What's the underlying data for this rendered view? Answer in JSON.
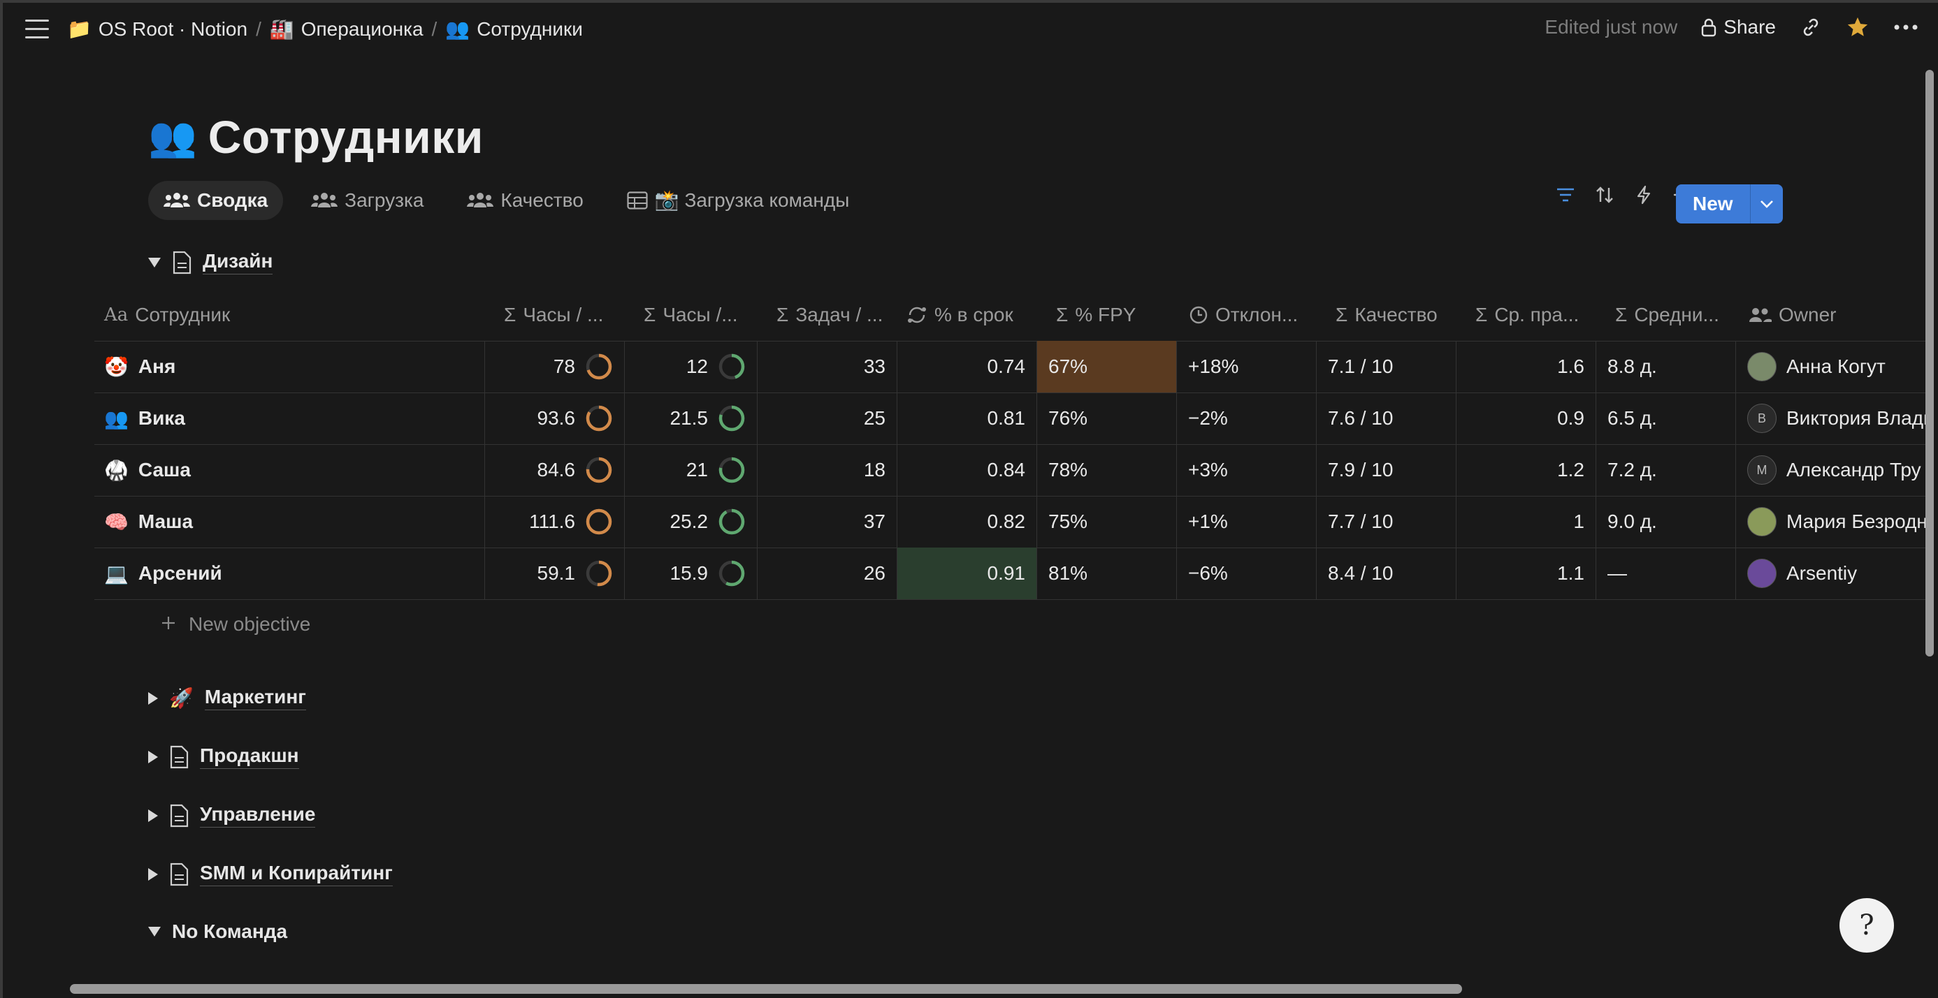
{
  "breadcrumbs": [
    {
      "icon": "📁",
      "label": "OS Root · Notion"
    },
    {
      "icon": "🏭",
      "label": "Операционка"
    },
    {
      "icon": "👥",
      "label": "Сотрудники"
    }
  ],
  "topbar": {
    "edited": "Edited just now",
    "share": "Share"
  },
  "page": {
    "icon": "👥",
    "title": "Сотрудники"
  },
  "tabs": [
    {
      "label": "Сводка",
      "icon": "people-icon",
      "active": true
    },
    {
      "label": "Загрузка",
      "icon": "people-icon"
    },
    {
      "label": "Качество",
      "icon": "people-icon"
    },
    {
      "label": "📸 Загрузка команды",
      "icon": "table-icon"
    }
  ],
  "toolbar": {
    "new_label": "New",
    "accent": "#3d7bd8"
  },
  "groups": {
    "design": "Дизайн",
    "marketing": "Маркетинг",
    "production": "Продакшн",
    "management": "Управление",
    "smm": "SMM и Копирайтинг",
    "no_team": "No Команда"
  },
  "table": {
    "headers": [
      "Сотрудник",
      "Часы / ...",
      "Часы /...",
      "Задач / ...",
      "% в срок",
      "% FPY",
      "Отклон...",
      "Качество",
      "Ср. пра...",
      "Средни...",
      "Owner"
    ],
    "rows": [
      {
        "emoji": "🤡",
        "name": "Аня",
        "hours1": "78",
        "ring1": 0.7,
        "hours2": "12",
        "ring2": 0.45,
        "tasks": "33",
        "on_time": "0.74",
        "fpy": "67%",
        "dev": "+18%",
        "quality": "7.1 / 10",
        "avg_edits": "1.6",
        "avg_days": "8.8 д.",
        "owner": "Анна Когут"
      },
      {
        "emoji": "👥",
        "name": "Вика",
        "hours1": "93.6",
        "ring1": 0.84,
        "hours2": "21.5",
        "ring2": 0.8,
        "tasks": "25",
        "on_time": "0.81",
        "fpy": "76%",
        "dev": "−2%",
        "quality": "7.6 / 10",
        "avg_edits": "0.9",
        "avg_days": "6.5 д.",
        "owner": "Виктория Влади"
      },
      {
        "emoji": "🥋",
        "name": "Саша",
        "hours1": "84.6",
        "ring1": 0.76,
        "hours2": "21",
        "ring2": 0.78,
        "tasks": "18",
        "on_time": "0.84",
        "fpy": "78%",
        "dev": "+3%",
        "quality": "7.9 / 10",
        "avg_edits": "1.2",
        "avg_days": "7.2 д.",
        "owner": "Александр Тру"
      },
      {
        "emoji": "🧠",
        "name": "Маша",
        "hours1": "111.6",
        "ring1": 1.0,
        "hours2": "25.2",
        "ring2": 0.92,
        "tasks": "37",
        "on_time": "0.82",
        "fpy": "75%",
        "dev": "+1%",
        "quality": "7.7 / 10",
        "avg_edits": "1",
        "avg_days": "9.0 д.",
        "owner": "Мария Безродн"
      },
      {
        "emoji": "💻",
        "name": "Арсений",
        "hours1": "59.1",
        "ring1": 0.52,
        "hours2": "15.9",
        "ring2": 0.58,
        "tasks": "26",
        "on_time": "0.91",
        "fpy": "81%",
        "dev": "−6%",
        "quality": "8.4 / 10",
        "avg_edits": "1.1",
        "avg_days": "—",
        "owner": "Arsentiy"
      }
    ],
    "new_objective": "New objective"
  },
  "colors": {
    "ring_orange": "#d28a4a",
    "ring_green": "#5fa870",
    "fpy_highlight": "#5a3a20",
    "on_time_highlight": "#2a3e2e"
  }
}
